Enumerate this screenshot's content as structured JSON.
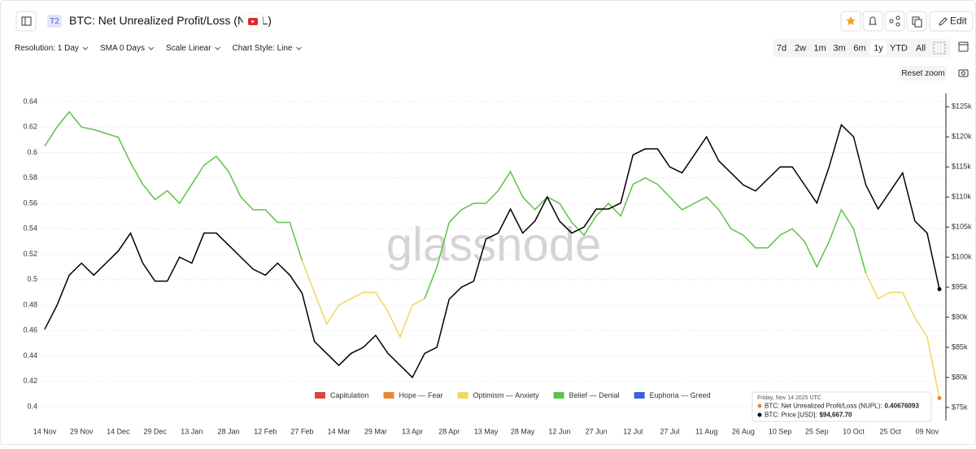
{
  "header": {
    "badge": "T2",
    "title": "BTC: Net Unrealized Profit/Loss (NUPL)",
    "edit": "Edit"
  },
  "toolbar": {
    "controls": [
      "Resolution: 1 Day",
      "SMA 0 Days",
      "Scale Linear",
      "Chart Style: Line"
    ],
    "ranges": [
      "7d",
      "2w",
      "1m",
      "3m",
      "6m",
      "1y",
      "YTD",
      "All"
    ],
    "active_range": "1y",
    "reset_zoom": "Reset zoom"
  },
  "chart_data": {
    "type": "line",
    "watermark": "glassnode",
    "categories": [
      "14 Nov",
      null,
      null,
      "29 Nov",
      null,
      null,
      "14 Dec",
      null,
      null,
      "29 Dec",
      null,
      null,
      "13 Jan",
      null,
      null,
      "28 Jan",
      null,
      null,
      "12 Feb",
      null,
      null,
      "27 Feb",
      null,
      null,
      "14 Mar",
      null,
      null,
      "29 Mar",
      null,
      null,
      "13 Apr",
      null,
      null,
      "28 Apr",
      null,
      null,
      "13 May",
      null,
      null,
      "28 May",
      null,
      null,
      "12 Jun",
      null,
      null,
      "27 Jun",
      null,
      null,
      "12 Jul",
      null,
      null,
      "27 Jul",
      null,
      null,
      "11 Aug",
      null,
      null,
      "26 Aug",
      null,
      null,
      "10 Sep",
      null,
      null,
      "25 Sep",
      null,
      null,
      "10 Oct",
      null,
      null,
      "25 Oct",
      null,
      null,
      "09 Nov",
      null
    ],
    "zones": [
      {
        "name": "Capitulation",
        "color": "#d9463e",
        "from": null
      },
      {
        "name": "Hope — Fear",
        "color": "#e8883a",
        "from": 0
      },
      {
        "name": "Optimism — Anxiety",
        "color": "#f0d75a",
        "from": 0.25
      },
      {
        "name": "Belief — Denial",
        "color": "#5cc447",
        "from": 0.5
      },
      {
        "name": "Euphoria — Greed",
        "color": "#3d5fe0",
        "from": 0.75
      }
    ],
    "series": [
      {
        "values": [
          0.605,
          0.62,
          0.632,
          0.62,
          0.618,
          0.615,
          0.612,
          0.592,
          0.575,
          0.563,
          0.57,
          0.56,
          0.575,
          0.59,
          0.597,
          0.585,
          0.565,
          0.555,
          0.555,
          0.545,
          0.545,
          0.515,
          0.49,
          0.465,
          0.48,
          0.485,
          0.49,
          0.49,
          0.475,
          0.455,
          0.48,
          0.485,
          0.51,
          0.545,
          0.555,
          0.56,
          0.56,
          0.57,
          0.585,
          0.565,
          0.555,
          0.565,
          0.56,
          0.545,
          0.535,
          0.55,
          0.56,
          0.55,
          0.575,
          0.58,
          0.575,
          0.565,
          0.555,
          0.56,
          0.565,
          0.555,
          0.54,
          0.535,
          0.525,
          0.525,
          0.535,
          0.54,
          0.53,
          0.51,
          0.53,
          0.555,
          0.54,
          0.505,
          0.485,
          0.49,
          0.49,
          0.47,
          0.455,
          0.40676093
        ]
      },
      {
        "color": "#000000",
        "axis": "y2",
        "values": [
          88000,
          92000,
          97000,
          99000,
          97000,
          99000,
          101000,
          104000,
          99000,
          96000,
          96000,
          100000,
          99000,
          104000,
          104000,
          102000,
          100000,
          98000,
          97000,
          99000,
          97000,
          94000,
          86000,
          84000,
          82000,
          84000,
          85000,
          87000,
          84000,
          82000,
          80000,
          84000,
          85000,
          93000,
          95000,
          96000,
          103000,
          104000,
          108000,
          104000,
          106000,
          110000,
          106000,
          104000,
          105000,
          108000,
          108000,
          109000,
          117000,
          118000,
          118000,
          115000,
          114000,
          117000,
          120000,
          116000,
          114000,
          112000,
          111000,
          113000,
          115000,
          115000,
          112000,
          109000,
          115000,
          122000,
          120000,
          112000,
          108000,
          111000,
          114000,
          106000,
          104000,
          94667.7
        ],
        "value_labels": [
          null,
          null,
          null,
          null,
          null,
          null,
          null,
          null,
          null,
          null,
          null,
          null,
          null,
          null,
          null,
          null,
          null,
          null,
          null,
          null,
          null,
          null,
          null,
          null,
          null,
          null,
          null,
          null,
          null,
          null,
          null,
          null,
          null,
          null,
          null,
          null,
          null,
          null,
          null,
          null,
          null,
          null,
          null,
          null,
          null,
          null,
          null,
          null,
          null,
          null,
          null,
          null,
          null,
          null,
          null,
          null,
          null,
          null,
          null,
          null,
          null,
          null,
          null,
          null,
          null,
          null,
          null,
          null,
          null,
          null,
          null,
          null,
          null,
          "$94,667.70"
        ]
      }
    ],
    "ylim": [
      0.3904,
      0.6464
    ],
    "yticks": [
      0.4,
      0.42,
      0.44,
      0.46,
      0.48,
      0.5,
      0.52,
      0.54,
      0.56,
      0.58,
      0.6,
      0.62,
      0.64
    ],
    "y2lim": [
      73100,
      127200
    ],
    "y2ticks": [
      {
        "value": 75000,
        "label": "$75k"
      },
      {
        "value": 80000,
        "label": "$80k"
      },
      {
        "value": 85000,
        "label": "$85k"
      },
      {
        "value": 90000,
        "label": "$90k"
      },
      {
        "value": 95000,
        "label": "$95k"
      },
      {
        "value": 100000,
        "label": "$100k"
      },
      {
        "value": 105000,
        "label": "$105k"
      },
      {
        "value": 110000,
        "label": "$110k"
      },
      {
        "value": 115000,
        "label": "$115k"
      },
      {
        "value": 120000,
        "label": "$120k"
      },
      {
        "value": 125000,
        "label": "$125k"
      }
    ],
    "grid": true,
    "tooltip": {
      "date": "Friday, Nov 14 2025 UTC",
      "rows": [
        "BTC: Net Unrealized Profit/Loss (NUPL):",
        "BTC: Price [USD]:"
      ]
    }
  }
}
